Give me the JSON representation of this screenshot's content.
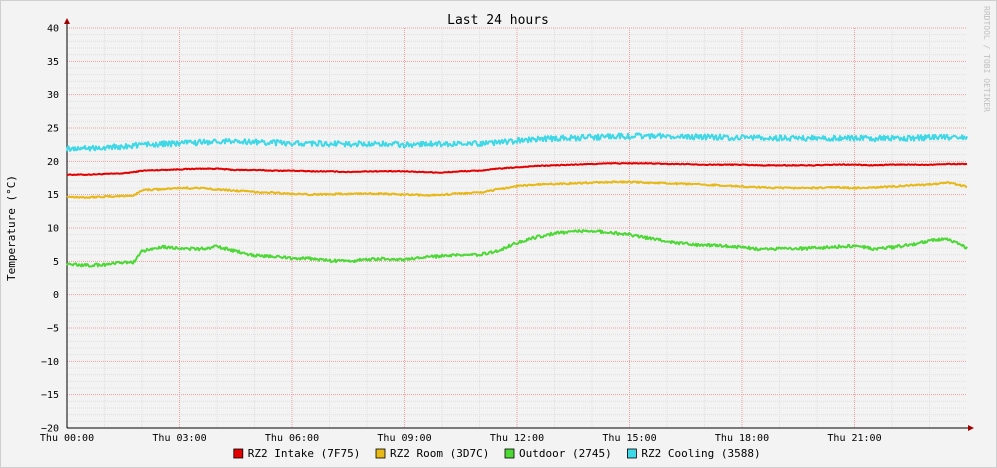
{
  "chart_data": {
    "type": "line",
    "title": "Last 24 hours",
    "ylabel": "Temperature (°C)",
    "watermark": "RRDTOOL / TOBI OETIKER",
    "ylim": [
      -20,
      40
    ],
    "y_ticks": [
      40,
      35,
      30,
      25,
      20,
      15,
      10,
      5,
      0,
      -5,
      -10,
      -15,
      -20
    ],
    "y_tick_labels": [
      "40",
      "35",
      "30",
      "25",
      "20",
      "15",
      "10",
      "5",
      "0",
      "−5",
      "−10",
      "−15",
      "−20"
    ],
    "xlim": [
      0,
      24
    ],
    "x_unit": "hours since Thu 00:00",
    "x_ticks": [
      0,
      3,
      6,
      9,
      12,
      15,
      18,
      21
    ],
    "x_tick_labels": [
      "Thu 00:00",
      "Thu 03:00",
      "Thu 06:00",
      "Thu 09:00",
      "Thu 12:00",
      "Thu 15:00",
      "Thu 18:00",
      "Thu 21:00"
    ],
    "grid": true,
    "legend_position": "bottom",
    "x": [
      0,
      0.5,
      1,
      1.5,
      1.8,
      2,
      2.5,
      3,
      3.5,
      4,
      4.5,
      5,
      5.5,
      6,
      6.5,
      7,
      7.5,
      8,
      8.5,
      9,
      9.5,
      10,
      10.5,
      11,
      11.5,
      12,
      12.5,
      13,
      13.5,
      14,
      14.5,
      15,
      15.5,
      16,
      16.5,
      17,
      17.5,
      18,
      18.5,
      19,
      19.5,
      20,
      20.5,
      21,
      21.5,
      22,
      22.5,
      23,
      23.5,
      24
    ],
    "series": [
      {
        "name": "RZ2 Intake (7F75)",
        "color": "#e30000",
        "values": [
          18.0,
          18.0,
          18.1,
          18.2,
          18.4,
          18.6,
          18.7,
          18.8,
          18.9,
          18.9,
          18.7,
          18.7,
          18.6,
          18.6,
          18.5,
          18.5,
          18.4,
          18.5,
          18.5,
          18.5,
          18.4,
          18.3,
          18.5,
          18.6,
          18.9,
          19.1,
          19.3,
          19.4,
          19.5,
          19.6,
          19.7,
          19.7,
          19.7,
          19.6,
          19.6,
          19.5,
          19.5,
          19.5,
          19.4,
          19.4,
          19.4,
          19.4,
          19.5,
          19.5,
          19.4,
          19.5,
          19.5,
          19.5,
          19.6,
          19.6
        ]
      },
      {
        "name": "RZ2 Room (3D7C)",
        "color": "#e6b818",
        "values": [
          14.7,
          14.6,
          14.7,
          14.8,
          14.9,
          15.7,
          15.8,
          16.0,
          16.0,
          15.8,
          15.6,
          15.4,
          15.3,
          15.1,
          15.0,
          15.1,
          15.1,
          15.2,
          15.1,
          15.0,
          14.9,
          15.0,
          15.2,
          15.3,
          15.8,
          16.3,
          16.5,
          16.6,
          16.7,
          16.8,
          16.9,
          16.9,
          16.8,
          16.7,
          16.6,
          16.5,
          16.4,
          16.2,
          16.1,
          16.0,
          16.0,
          16.0,
          16.1,
          16.0,
          16.1,
          16.2,
          16.4,
          16.5,
          16.8,
          16.2
        ]
      },
      {
        "name": "Outdoor (2745)",
        "color": "#4ed838",
        "values": [
          4.6,
          4.4,
          4.5,
          4.8,
          4.9,
          6.5,
          7.2,
          7.0,
          6.8,
          7.2,
          6.5,
          5.9,
          5.7,
          5.5,
          5.4,
          5.1,
          5.0,
          5.3,
          5.4,
          5.2,
          5.6,
          5.8,
          5.9,
          6.0,
          6.6,
          7.8,
          8.6,
          9.2,
          9.5,
          9.6,
          9.3,
          9.0,
          8.5,
          8.0,
          7.6,
          7.4,
          7.3,
          7.1,
          6.8,
          6.9,
          6.9,
          7.0,
          7.2,
          7.3,
          6.9,
          7.1,
          7.5,
          8.1,
          8.3,
          7.0
        ]
      },
      {
        "name": "RZ2 Cooling (3588)",
        "color": "#3ed8e6",
        "values": [
          21.9,
          22.0,
          22.1,
          22.2,
          22.4,
          22.5,
          22.6,
          22.7,
          22.8,
          23.0,
          23.0,
          22.9,
          22.8,
          22.7,
          22.7,
          22.6,
          22.6,
          22.6,
          22.6,
          22.5,
          22.6,
          22.6,
          22.6,
          22.7,
          22.8,
          23.1,
          23.3,
          23.4,
          23.5,
          23.6,
          23.7,
          23.8,
          23.8,
          23.8,
          23.7,
          23.7,
          23.6,
          23.6,
          23.6,
          23.5,
          23.5,
          23.5,
          23.5,
          23.5,
          23.4,
          23.5,
          23.5,
          23.6,
          23.6,
          23.7
        ]
      }
    ]
  }
}
